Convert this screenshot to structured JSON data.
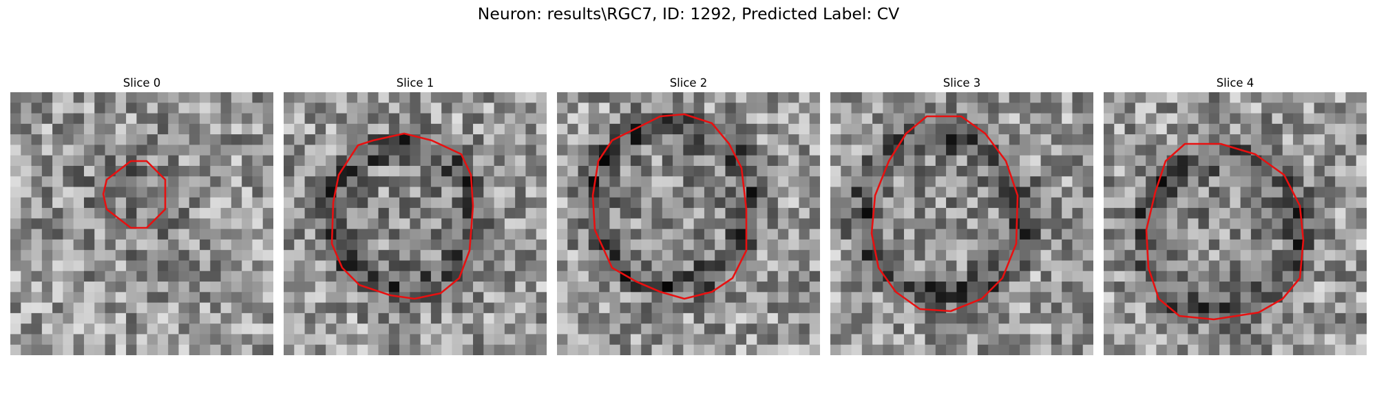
{
  "title": "Neuron: results\\RGC7, ID: 1292, Predicted Label: CV",
  "colors": {
    "contour": "#e81010",
    "background": "#ffffff"
  },
  "panels": [
    {
      "title": "Slice 0",
      "seed": 11,
      "contrast": 0.45,
      "dark_ring": false
    },
    {
      "title": "Slice 1",
      "seed": 23,
      "contrast": 0.85,
      "dark_ring": true
    },
    {
      "title": "Slice 2",
      "seed": 37,
      "contrast": 0.9,
      "dark_ring": true
    },
    {
      "title": "Slice 3",
      "seed": 53,
      "contrast": 0.9,
      "dark_ring": true
    },
    {
      "title": "Slice 4",
      "seed": 71,
      "contrast": 0.85,
      "dark_ring": true
    }
  ]
}
